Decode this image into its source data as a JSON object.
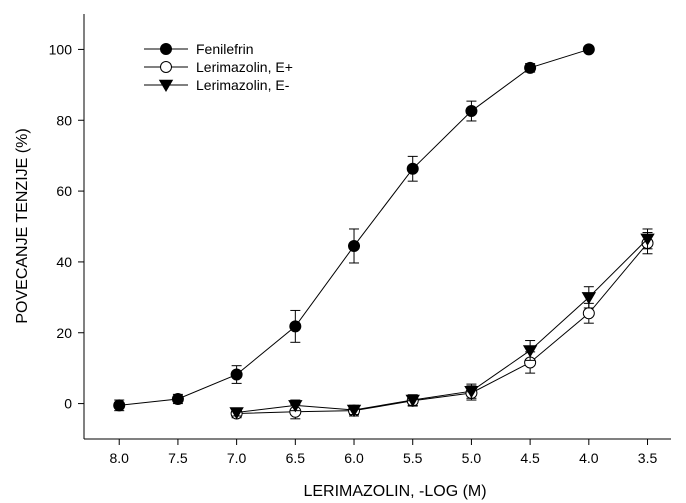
{
  "chart_data": {
    "type": "line",
    "xlabel": "LERIMAZOLIN, -LOG (M)",
    "ylabel": "POVECANJE TENZIJE (%)",
    "x_reversed": true,
    "xlim": [
      8.3,
      3.3
    ],
    "ylim": [
      -10,
      110
    ],
    "xticks": [
      8.0,
      7.5,
      7.0,
      6.5,
      6.0,
      5.5,
      5.0,
      4.5,
      4.0,
      3.5
    ],
    "xtick_labels": [
      "8.0",
      "7.5",
      "7.0",
      "6.5",
      "6.0",
      "5.5",
      "5.0",
      "4.5",
      "4.0",
      "3.5"
    ],
    "yticks": [
      0,
      20,
      40,
      60,
      80,
      100
    ],
    "ytick_labels": [
      "0",
      "20",
      "40",
      "60",
      "80",
      "100"
    ],
    "grid": false,
    "legend_position": "top-left",
    "series": [
      {
        "name": "Fenilefrin",
        "marker": "filled-circle",
        "x": [
          8.0,
          7.5,
          7.0,
          6.5,
          6.0,
          5.5,
          5.0,
          4.5,
          4.0
        ],
        "y": [
          -0.5,
          1.3,
          8.2,
          21.8,
          44.5,
          66.3,
          82.6,
          94.8,
          100.0
        ],
        "err": [
          1.5,
          1.3,
          2.5,
          4.5,
          4.8,
          3.5,
          2.8,
          1.2,
          0.0
        ]
      },
      {
        "name": "Lerimazolin, E+",
        "marker": "open-circle",
        "x": [
          7.0,
          6.5,
          6.0,
          5.5,
          5.0,
          4.5,
          4.0,
          3.5
        ],
        "y": [
          -2.8,
          -2.3,
          -2.0,
          0.8,
          3.0,
          11.6,
          25.5,
          45.3
        ],
        "err": [
          1.2,
          2.0,
          1.5,
          1.5,
          2.0,
          3.0,
          2.8,
          3.0
        ]
      },
      {
        "name": "Lerimazolin, E-",
        "marker": "filled-triangle-down",
        "x": [
          7.0,
          6.5,
          6.0,
          5.5,
          5.0,
          4.5,
          4.0,
          3.5
        ],
        "y": [
          -2.5,
          -0.5,
          -1.8,
          1.0,
          3.5,
          15.0,
          30.0,
          46.5
        ],
        "err": [
          1.0,
          1.5,
          1.3,
          1.5,
          2.0,
          2.8,
          3.0,
          2.8
        ]
      }
    ]
  }
}
